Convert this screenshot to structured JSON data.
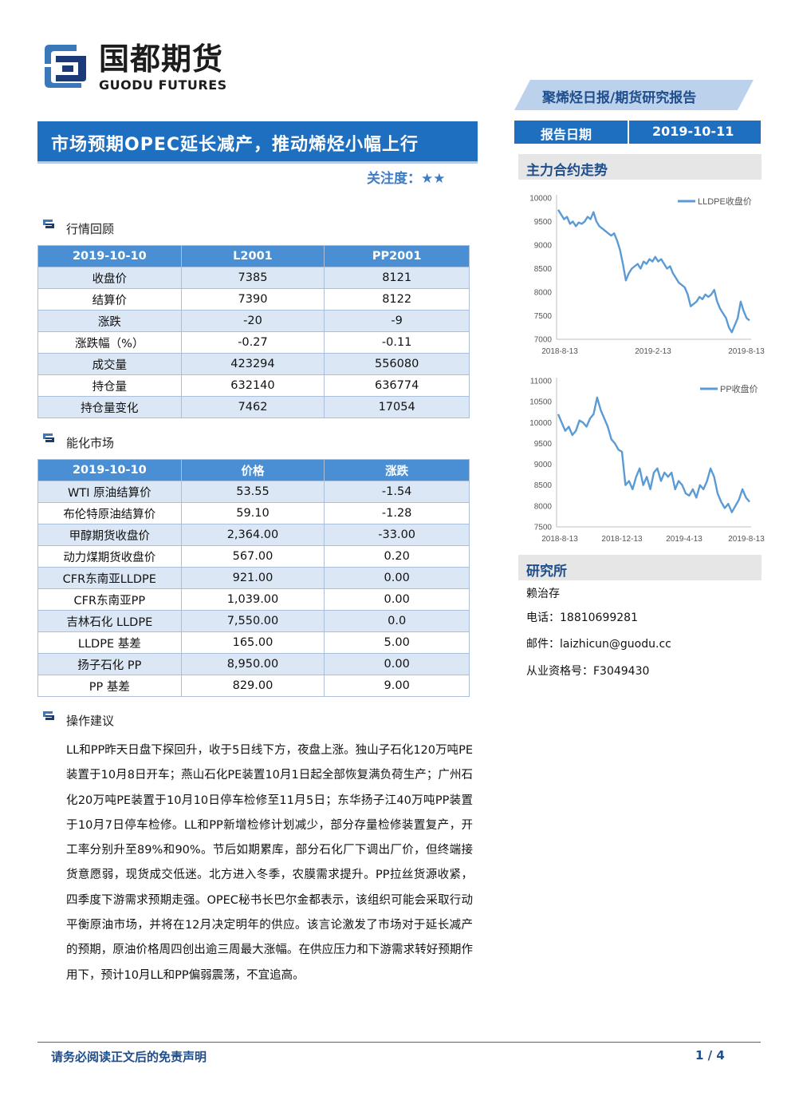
{
  "brand": {
    "name_cn": "国都期货",
    "name_en": "GUODU FUTURES"
  },
  "banner": "聚烯烃日报/期货研究报告",
  "title": "市场预期OPEC延长减产，推动烯烃小幅上行",
  "attention": "关注度：★★",
  "report_date": {
    "label": "报告日期",
    "value": "2019-10-11"
  },
  "section1": {
    "title": "行情回顾",
    "header": [
      "2019-10-10",
      "L2001",
      "PP2001"
    ],
    "rows": [
      [
        "收盘价",
        "7385",
        "8121"
      ],
      [
        "结算价",
        "7390",
        "8122"
      ],
      [
        "涨跌",
        "-20",
        "-9"
      ],
      [
        "涨跌幅（%）",
        "-0.27",
        "-0.11"
      ],
      [
        "成交量",
        "423294",
        "556080"
      ],
      [
        "持仓量",
        "632140",
        "636774"
      ],
      [
        "持仓量变化",
        "7462",
        "17054"
      ]
    ]
  },
  "section2": {
    "title": "能化市场",
    "header": [
      "2019-10-10",
      "价格",
      "涨跌"
    ],
    "rows": [
      [
        "WTI 原油结算价",
        "53.55",
        "-1.54"
      ],
      [
        "布伦特原油结算价",
        "59.10",
        "-1.28"
      ],
      [
        "甲醇期货收盘价",
        "2,364.00",
        "-33.00"
      ],
      [
        "动力煤期货收盘价",
        "567.00",
        "0.20"
      ],
      [
        "CFR东南亚LLDPE",
        "921.00",
        "0.00"
      ],
      [
        "CFR东南亚PP",
        "1,039.00",
        "0.00"
      ],
      [
        "吉林石化 LLDPE",
        "7,550.00",
        "0.0"
      ],
      [
        "LLDPE 基差",
        "165.00",
        "5.00"
      ],
      [
        "扬子石化 PP",
        "8,950.00",
        "0.00"
      ],
      [
        "PP 基差",
        "829.00",
        "9.00"
      ]
    ]
  },
  "section3": {
    "title": "操作建议",
    "text": "LL和PP昨天日盘下探回升，收于5日线下方，夜盘上涨。独山子石化120万吨PE装置于10月8日开车；燕山石化PE装置10月1日起全部恢复满负荷生产；广州石化20万吨PE装置于10月10日停车检修至11月5日；东华扬子江40万吨PP装置于10月7日停车检修。LL和PP新增检修计划减少，部分存量检修装置复产，开工率分别升至89%和90%。节后如期累库，部分石化厂下调出厂价，但终端接货意愿弱，现货成交低迷。北方进入冬季，农膜需求提升。PP拉丝货源收紧，四季度下游需求预期走强。OPEC秘书长巴尔金都表示，该组织可能会采取行动平衡原油市场，并将在12月决定明年的供应。该言论激发了市场对于延长减产的预期，原油价格周四创出逾三周最大涨幅。在供应压力和下游需求转好预期作用下，预计10月LL和PP偏弱震荡，不宜追高。"
  },
  "sidebar": {
    "chart_section_title": "主力合约走势",
    "research_title": "研究所",
    "analyst": "赖治存",
    "phone": "电话：18810699281",
    "email": "邮件：laizhicun@guodu.cc",
    "license": "从业资格号：F3049430"
  },
  "footer": {
    "disclaimer": "请务必阅读正文后的免责声明",
    "page": "1 / 4"
  },
  "colors": {
    "primary": "#1f6fc0",
    "line": "#5b9bd5",
    "header_cell": "#4a8fd4",
    "row_alt": "#dce7f5"
  },
  "chart_data": [
    {
      "type": "line",
      "series": [
        {
          "name": "LLDPE收盘价",
          "values": [
            9750,
            9650,
            9550,
            9600,
            9450,
            9500,
            9400,
            9480,
            9450,
            9500,
            9600,
            9550,
            9700,
            9500,
            9400,
            9350,
            9300,
            9250,
            9200,
            9250,
            9100,
            8900,
            8600,
            8250,
            8400,
            8500,
            8550,
            8600,
            8500,
            8650,
            8600,
            8700,
            8650,
            8750,
            8650,
            8700,
            8600,
            8500,
            8550,
            8400,
            8300,
            8200,
            8150,
            8100,
            7950,
            7700,
            7750,
            7800,
            7900,
            7850,
            7950,
            7900,
            7950,
            8050,
            7800,
            7650,
            7550,
            7450,
            7250,
            7150,
            7300,
            7450,
            7800,
            7600,
            7450,
            7400
          ]
        }
      ],
      "x_ticks": [
        "2018-8-13",
        "2019-2-13",
        "2019-8-13"
      ],
      "ylim": [
        7000,
        10000
      ],
      "y_ticks": [
        7000,
        7500,
        8000,
        8500,
        9000,
        9500,
        10000
      ],
      "legend": "top-right"
    },
    {
      "type": "line",
      "series": [
        {
          "name": "PP收盘价",
          "values": [
            10200,
            10000,
            9800,
            9900,
            9700,
            9800,
            10050,
            10000,
            9900,
            10100,
            10200,
            10600,
            10300,
            10100,
            9900,
            9600,
            9500,
            9350,
            9300,
            8500,
            8600,
            8400,
            8700,
            8900,
            8500,
            8700,
            8400,
            8800,
            8900,
            8600,
            8800,
            8700,
            8800,
            8400,
            8600,
            8500,
            8300,
            8250,
            8400,
            8200,
            8500,
            8400,
            8600,
            8900,
            8700,
            8300,
            8100,
            7950,
            8050,
            7850,
            8000,
            8150,
            8400,
            8200,
            8100
          ]
        }
      ],
      "x_ticks": [
        "2018-8-13",
        "2018-12-13",
        "2019-4-13",
        "2019-8-13"
      ],
      "ylim": [
        7500,
        11000
      ],
      "y_ticks": [
        7500,
        8000,
        8500,
        9000,
        9500,
        10000,
        10500,
        11000
      ],
      "legend": "top-right"
    }
  ]
}
